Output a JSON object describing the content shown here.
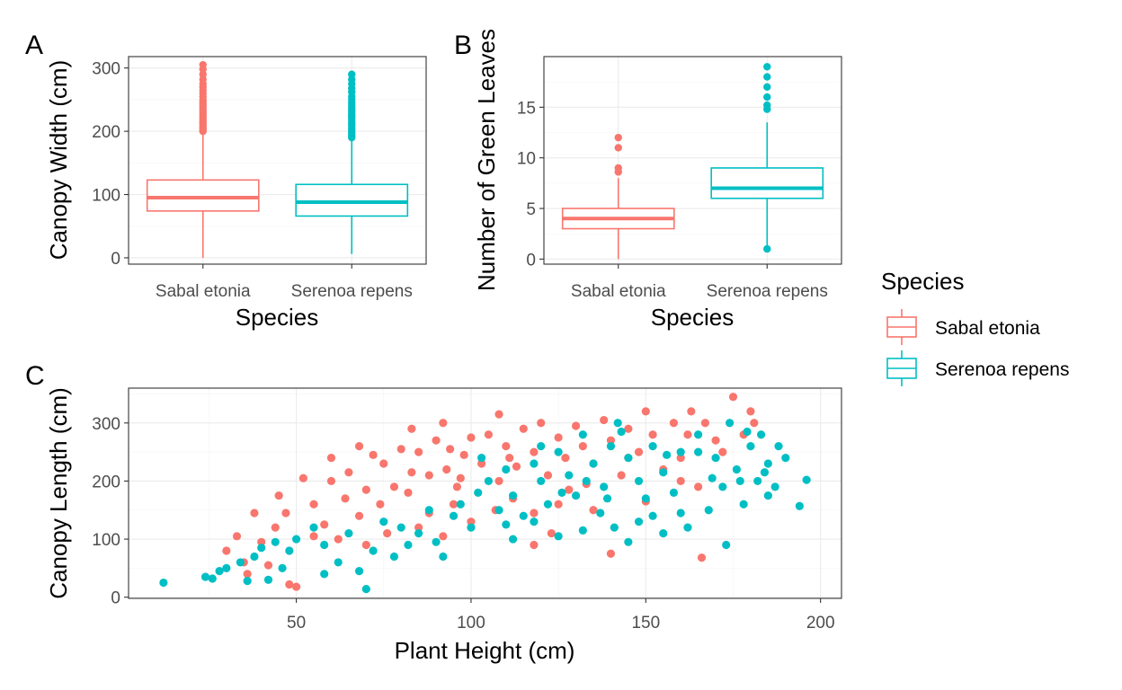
{
  "legend": {
    "title": "Species",
    "items": [
      {
        "label": "Sabal etonia",
        "color": "#F8766D"
      },
      {
        "label": "Serenoa repens",
        "color": "#00BFC4"
      }
    ]
  },
  "chart_data": [
    {
      "panel": "A",
      "type": "box",
      "xlabel": "Species",
      "ylabel": "Canopy Width (cm)",
      "ylim": [
        -10,
        318
      ],
      "yticks": [
        0,
        100,
        200,
        300
      ],
      "grid": true,
      "categories": [
        "Sabal etonia",
        "Serenoa repens"
      ],
      "series": [
        {
          "name": "Sabal etonia",
          "color": "#F8766D",
          "stats": {
            "whisker_low": 0,
            "q1": 74,
            "median": 95,
            "q3": 123,
            "whisker_high": 196
          },
          "outliers": [
            200,
            202,
            205,
            208,
            212,
            215,
            218,
            222,
            226,
            230,
            234,
            238,
            242,
            246,
            250,
            255,
            260,
            265,
            270,
            275,
            282,
            290,
            298,
            305
          ]
        },
        {
          "name": "Serenoa repens",
          "color": "#00BFC4",
          "stats": {
            "whisker_low": 6,
            "q1": 66,
            "median": 88,
            "q3": 116,
            "whisker_high": 188
          },
          "outliers": [
            190,
            193,
            196,
            200,
            204,
            208,
            212,
            216,
            220,
            224,
            228,
            232,
            236,
            240,
            245,
            250,
            255,
            262,
            268,
            275,
            282,
            290
          ]
        }
      ]
    },
    {
      "panel": "B",
      "type": "box",
      "xlabel": "Species",
      "ylabel": "Number of Green Leaves",
      "ylim": [
        -0.5,
        20
      ],
      "yticks": [
        0,
        5,
        10,
        15
      ],
      "grid": true,
      "categories": [
        "Sabal etonia",
        "Serenoa repens"
      ],
      "series": [
        {
          "name": "Sabal etonia",
          "color": "#F8766D",
          "stats": {
            "whisker_low": 0,
            "q1": 3,
            "median": 4,
            "q3": 5,
            "whisker_high": 8
          },
          "outliers": [
            8.6,
            9,
            11,
            12
          ]
        },
        {
          "name": "Serenoa repens",
          "color": "#00BFC4",
          "stats": {
            "whisker_low": 1,
            "q1": 6,
            "median": 7,
            "q3": 9,
            "whisker_high": 13.5
          },
          "outliers": [
            1,
            14.8,
            15.2,
            16,
            17,
            18,
            19
          ]
        }
      ]
    },
    {
      "panel": "C",
      "type": "scatter",
      "xlabel": "Plant Height (cm)",
      "ylabel": "Canopy Length (cm)",
      "xlim": [
        2,
        206
      ],
      "ylim": [
        -2,
        360
      ],
      "xticks": [
        50,
        100,
        150,
        200
      ],
      "yticks": [
        0,
        100,
        200,
        300
      ],
      "grid": true,
      "series": [
        {
          "name": "Sabal etonia",
          "color": "#F8766D",
          "points": [
            [
              30,
              80
            ],
            [
              33,
              105
            ],
            [
              38,
              145
            ],
            [
              36,
              40
            ],
            [
              45,
              175
            ],
            [
              52,
              205
            ],
            [
              55,
              160
            ],
            [
              60,
              200
            ],
            [
              58,
              125
            ],
            [
              65,
              215
            ],
            [
              62,
              100
            ],
            [
              70,
              185
            ],
            [
              72,
              245
            ],
            [
              68,
              140
            ],
            [
              75,
              230
            ],
            [
              78,
              190
            ],
            [
              80,
              255
            ],
            [
              76,
              110
            ],
            [
              85,
              250
            ],
            [
              88,
              210
            ],
            [
              82,
              180
            ],
            [
              90,
              270
            ],
            [
              93,
              220
            ],
            [
              95,
              160
            ],
            [
              92,
              300
            ],
            [
              98,
              245
            ],
            [
              100,
              275
            ],
            [
              96,
              190
            ],
            [
              103,
              230
            ],
            [
              105,
              280
            ],
            [
              108,
              200
            ],
            [
              110,
              260
            ],
            [
              112,
              170
            ],
            [
              115,
              290
            ],
            [
              113,
              225
            ],
            [
              118,
              250
            ],
            [
              120,
              300
            ],
            [
              122,
              210
            ],
            [
              125,
              275
            ],
            [
              127,
              240
            ],
            [
              128,
              185
            ],
            [
              130,
              295
            ],
            [
              132,
              260
            ],
            [
              135,
              230
            ],
            [
              138,
              305
            ],
            [
              140,
              270
            ],
            [
              143,
              210
            ],
            [
              145,
              290
            ],
            [
              148,
              250
            ],
            [
              150,
              320
            ],
            [
              152,
              280
            ],
            [
              155,
              220
            ],
            [
              158,
              300
            ],
            [
              160,
              240
            ],
            [
              162,
              280
            ],
            [
              165,
              190
            ],
            [
              167,
              300
            ],
            [
              170,
              270
            ],
            [
              172,
              250
            ],
            [
              175,
              345
            ],
            [
              178,
              280
            ],
            [
              180,
              320
            ],
            [
              181,
              300
            ],
            [
              166,
              68
            ],
            [
              118,
              90
            ],
            [
              135,
              150
            ],
            [
              140,
              75
            ],
            [
              100,
              130
            ],
            [
              85,
              120
            ],
            [
              92,
              105
            ],
            [
              48,
              22
            ],
            [
              50,
              18
            ],
            [
              42,
              55
            ],
            [
              70,
              90
            ],
            [
              74,
              160
            ],
            [
              88,
              145
            ],
            [
              107,
              150
            ],
            [
              118,
              145
            ],
            [
              125,
              160
            ],
            [
              44,
              120
            ],
            [
              47,
              145
            ],
            [
              64,
              170
            ],
            [
              55,
              105
            ],
            [
              83,
              215
            ],
            [
              97,
              205
            ],
            [
              111,
              240
            ],
            [
              133,
              195
            ],
            [
              145,
              240
            ],
            [
              160,
              200
            ],
            [
              150,
              165
            ],
            [
              163,
              320
            ],
            [
              123,
              110
            ],
            [
              83,
              290
            ],
            [
              94,
              255
            ],
            [
              108,
              315
            ],
            [
              60,
              240
            ],
            [
              68,
              260
            ],
            [
              35,
              60
            ],
            [
              40,
              95
            ]
          ]
        },
        {
          "name": "Serenoa repens",
          "color": "#00BFC4",
          "points": [
            [
              12,
              25
            ],
            [
              24,
              35
            ],
            [
              26,
              32
            ],
            [
              28,
              45
            ],
            [
              30,
              50
            ],
            [
              34,
              60
            ],
            [
              38,
              70
            ],
            [
              40,
              85
            ],
            [
              44,
              95
            ],
            [
              48,
              80
            ],
            [
              50,
              100
            ],
            [
              55,
              120
            ],
            [
              58,
              90
            ],
            [
              62,
              60
            ],
            [
              65,
              110
            ],
            [
              70,
              14
            ],
            [
              72,
              80
            ],
            [
              75,
              130
            ],
            [
              78,
              70
            ],
            [
              80,
              120
            ],
            [
              85,
              110
            ],
            [
              88,
              150
            ],
            [
              90,
              95
            ],
            [
              95,
              140
            ],
            [
              100,
              120
            ],
            [
              102,
              180
            ],
            [
              105,
              200
            ],
            [
              108,
              150
            ],
            [
              110,
              220
            ],
            [
              112,
              175
            ],
            [
              115,
              140
            ],
            [
              118,
              230
            ],
            [
              120,
              200
            ],
            [
              122,
              160
            ],
            [
              125,
              250
            ],
            [
              128,
              210
            ],
            [
              130,
              175
            ],
            [
              132,
              280
            ],
            [
              135,
              230
            ],
            [
              138,
              190
            ],
            [
              140,
              260
            ],
            [
              142,
              300
            ],
            [
              145,
              240
            ],
            [
              148,
              200
            ],
            [
              150,
              170
            ],
            [
              152,
              260
            ],
            [
              155,
              215
            ],
            [
              158,
              180
            ],
            [
              160,
              250
            ],
            [
              162,
              120
            ],
            [
              165,
              280
            ],
            [
              168,
              150
            ],
            [
              170,
              240
            ],
            [
              172,
              190
            ],
            [
              174,
              300
            ],
            [
              176,
              220
            ],
            [
              178,
              160
            ],
            [
              180,
              260
            ],
            [
              182,
              200
            ],
            [
              183,
              280
            ],
            [
              185,
              175
            ],
            [
              187,
              190
            ],
            [
              188,
              260
            ],
            [
              190,
              240
            ],
            [
              194,
              157
            ],
            [
              196,
              202
            ],
            [
              173,
              90
            ],
            [
              145,
              95
            ],
            [
              155,
              110
            ],
            [
              132,
              115
            ],
            [
              125,
              105
            ],
            [
              118,
              130
            ],
            [
              92,
              70
            ],
            [
              68,
              45
            ],
            [
              58,
              40
            ],
            [
              46,
              50
            ],
            [
              36,
              28
            ],
            [
              42,
              30
            ],
            [
              82,
              90
            ],
            [
              112,
              100
            ],
            [
              137,
              145
            ],
            [
              148,
              130
            ],
            [
              160,
              145
            ],
            [
              97,
              160
            ],
            [
              103,
              240
            ],
            [
              120,
              260
            ],
            [
              133,
              200
            ],
            [
              143,
              285
            ],
            [
              165,
              250
            ],
            [
              177,
              200
            ],
            [
              185,
              230
            ],
            [
              152,
              140
            ],
            [
              139,
              170
            ],
            [
              110,
              125
            ],
            [
              126,
              180
            ],
            [
              141,
              120
            ],
            [
              156,
              245
            ],
            [
              169,
              205
            ],
            [
              179,
              285
            ],
            [
              184,
              215
            ]
          ]
        }
      ]
    }
  ]
}
